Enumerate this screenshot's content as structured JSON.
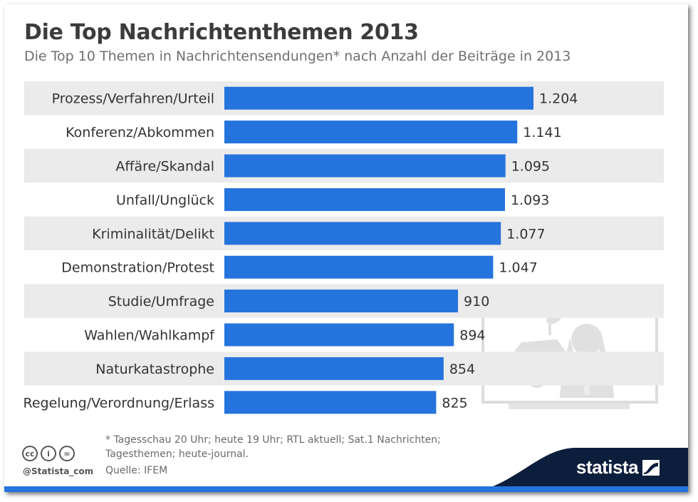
{
  "header": {
    "title": "Die Top Nachrichtenthemen 2013",
    "subtitle": "Die Top 10 Themen in Nachrichtensendungen* nach Anzahl der Beiträge in 2013"
  },
  "chart_data": {
    "type": "bar",
    "orientation": "horizontal",
    "categories": [
      "Prozess/Verfahren/Urteil",
      "Konferenz/Abkommen",
      "Affäre/Skandal",
      "Unfall/Unglück",
      "Kriminalität/Delikt",
      "Demonstration/Protest",
      "Studie/Umfrage",
      "Wahlen/Wahlkampf",
      "Naturkatastrophe",
      "Regelung/Verordnung/Erlass"
    ],
    "values": [
      1204,
      1141,
      1095,
      1093,
      1077,
      1047,
      910,
      894,
      854,
      825
    ],
    "value_labels": [
      "1.204",
      "1.141",
      "1.095",
      "1.093",
      "1.077",
      "1.047",
      "910",
      "894",
      "854",
      "825"
    ],
    "xlim": [
      0,
      1204
    ],
    "grid": false,
    "bar_color": "#2573dd",
    "stripe_color": "#ebebeb"
  },
  "footer": {
    "footnote": "* Tagesschau 20 Uhr; heute 19 Uhr; RTL aktuell; Sat.1 Nachrichten; Tagesthemen; heute-journal.",
    "source": "Quelle: IFEM",
    "handle": "@Statista_com",
    "cc_labels": [
      "cc",
      "i",
      "="
    ],
    "logo": "statista",
    "accent_color": "#2573dd"
  }
}
